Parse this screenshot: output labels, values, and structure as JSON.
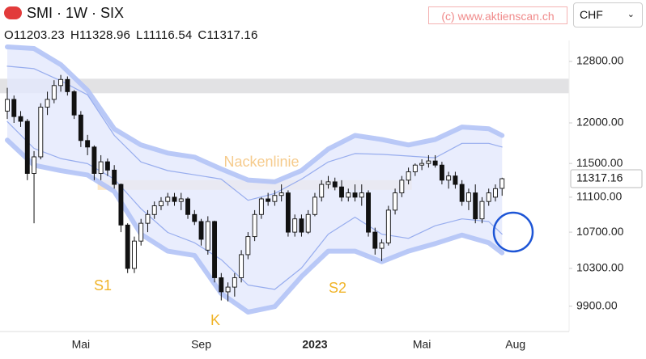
{
  "header": {
    "symbol": "SMI · 1W · SIX",
    "ohlc_labels": [
      "O",
      "H",
      "L",
      "C"
    ],
    "watermark": "(c) www.aktienscan.ch",
    "currency": "CHF"
  },
  "chart_data": {
    "type": "candlestick",
    "categories": [
      null,
      null,
      null,
      null,
      null,
      null,
      null,
      null,
      null,
      null,
      null,
      "Mai",
      null,
      null,
      null,
      null,
      null,
      null,
      null,
      null,
      null,
      null,
      null,
      null,
      null,
      null,
      null,
      null,
      null,
      "Sep",
      null,
      null,
      null,
      null,
      null,
      null,
      null,
      null,
      null,
      null,
      null,
      null,
      null,
      null,
      null,
      null,
      "2023",
      null,
      null,
      null,
      null,
      null,
      null,
      null,
      null,
      null,
      null,
      null,
      null,
      null,
      null,
      null,
      "Mai",
      null,
      null,
      null,
      null,
      null,
      null,
      null,
      null,
      null,
      null,
      null,
      null,
      null,
      "Aug"
    ],
    "open": [
      12150,
      12300,
      12080,
      12020,
      11380,
      11580,
      12200,
      12300,
      12480,
      12560,
      12400,
      12100,
      11780,
      11700,
      11380,
      11520,
      11420,
      11250,
      10780,
      10300,
      10600,
      10800,
      10900,
      11000,
      11050,
      11100,
      11050,
      11080,
      10900,
      10820,
      10500,
      10820,
      10200,
      10050,
      10100,
      10200,
      10450,
      10650,
      10900,
      11080,
      11050,
      11120,
      11150,
      10700,
      10850,
      10700,
      10900,
      11100,
      11250,
      11280,
      11220,
      11100,
      11150,
      11100,
      11150,
      10700,
      10520,
      10580,
      10950,
      11150,
      11300,
      11400,
      11480,
      11500,
      11530,
      11480,
      11300,
      11350,
      11250,
      11050,
      11150,
      10850,
      11050,
      11100,
      11203.23,
      null,
      null
    ],
    "high": [
      12450,
      12350,
      12150,
      12050,
      11650,
      12250,
      12400,
      12550,
      12620,
      12600,
      12420,
      12150,
      11850,
      11720,
      11600,
      11560,
      11480,
      11260,
      10800,
      10650,
      10850,
      10950,
      11050,
      11100,
      11150,
      11150,
      11150,
      11100,
      10950,
      10850,
      10880,
      10830,
      10250,
      10150,
      10250,
      10500,
      10700,
      10950,
      11100,
      11150,
      11180,
      11250,
      11180,
      10900,
      10900,
      10950,
      11150,
      11300,
      11350,
      11330,
      11300,
      11200,
      11250,
      11250,
      11180,
      10750,
      10620,
      11000,
      11200,
      11350,
      11450,
      11500,
      11550,
      11600,
      11600,
      11520,
      11400,
      11400,
      11300,
      11200,
      11250,
      11100,
      11200,
      11250,
      11328.96,
      null,
      null
    ],
    "low": [
      12050,
      12000,
      11950,
      11300,
      10800,
      11550,
      12100,
      12250,
      12400,
      12350,
      12050,
      11700,
      11600,
      11300,
      11300,
      11350,
      11200,
      10700,
      10250,
      10250,
      10550,
      10700,
      10850,
      10950,
      11000,
      11000,
      10950,
      10850,
      10780,
      10550,
      10450,
      10150,
      9960,
      9950,
      10000,
      10150,
      10400,
      10600,
      10850,
      11000,
      11000,
      11050,
      10650,
      10650,
      10650,
      10680,
      10880,
      11050,
      11200,
      11180,
      11050,
      11050,
      11050,
      11000,
      10650,
      10450,
      10380,
      10550,
      10900,
      11100,
      11250,
      11350,
      11420,
      11450,
      11450,
      11250,
      11200,
      11200,
      11000,
      10950,
      10800,
      10800,
      11000,
      11050,
      11116.54,
      null,
      null
    ],
    "close": [
      12300,
      12080,
      12020,
      11380,
      11580,
      12200,
      12300,
      12480,
      12560,
      12400,
      12100,
      11780,
      11700,
      11380,
      11520,
      11420,
      11250,
      10780,
      10300,
      10600,
      10800,
      10900,
      11000,
      11050,
      11100,
      11050,
      11080,
      10900,
      10820,
      10620,
      10820,
      10200,
      10050,
      10100,
      10200,
      10450,
      10650,
      10900,
      11080,
      11050,
      11120,
      11150,
      10700,
      10850,
      10700,
      10900,
      11100,
      11250,
      11280,
      11220,
      11100,
      11150,
      11100,
      11150,
      10700,
      10520,
      10580,
      10950,
      11150,
      11300,
      11400,
      11480,
      11500,
      11530,
      11480,
      11300,
      11350,
      11250,
      11050,
      11150,
      10850,
      11050,
      11150,
      11200,
      11317.16,
      null,
      null
    ],
    "up_color": "#ffffff",
    "down_color": "#111111",
    "ylim": [
      9640,
      13030
    ],
    "log_scale": true,
    "yticks": [
      {
        "value": 12800,
        "label": "12800.00"
      },
      {
        "value": 12000,
        "label": "12000.00"
      },
      {
        "value": 11500,
        "label": "11500.00"
      },
      {
        "value": 11100,
        "label": "11100.00"
      },
      {
        "value": 10700,
        "label": "10700.00"
      },
      {
        "value": 10300,
        "label": "10300.00"
      },
      {
        "value": 9900,
        "label": "9900.00"
      }
    ],
    "overlays": {
      "x": [
        0,
        4,
        8,
        12,
        16,
        20,
        24,
        28,
        32,
        36,
        40,
        44,
        48,
        52,
        56,
        60,
        64,
        68,
        72,
        74
      ],
      "fill": "#e4e8fc",
      "lines": [
        {
          "color": "#b3c3f6",
          "width": 6,
          "values": [
            12997,
            12975,
            12757,
            12418,
            11924,
            11725,
            11626,
            11577,
            11433,
            11302,
            11280,
            11414,
            11676,
            11843,
            11793,
            11725,
            11793,
            11948,
            11927,
            11843
          ]
        },
        {
          "color": "#b3c3f6",
          "width": 6,
          "values": [
            11785,
            11479,
            11413,
            11362,
            11167,
            10677,
            10489,
            10442,
            10032,
            9838,
            9895,
            10212,
            10489,
            10489,
            10373,
            10489,
            10572,
            10667,
            10582,
            10470
          ]
        },
        {
          "color": "#8ea5ec",
          "width": 1.2,
          "values": [
            12736,
            12703,
            12543,
            12359,
            11843,
            11518,
            11414,
            11364,
            11313,
            11064,
            11143,
            11313,
            11518,
            11620,
            11610,
            11590,
            11569,
            11745,
            11745,
            11700
          ]
        },
        {
          "color": "#8ea5ec",
          "width": 1.2,
          "values": [
            12017,
            11684,
            11559,
            11498,
            11313,
            10966,
            10696,
            10582,
            10396,
            10122,
            10076,
            10304,
            10677,
            10869,
            10677,
            10630,
            10772,
            10850,
            10820,
            10677
          ]
        }
      ]
    },
    "zones": [
      {
        "from": 12380,
        "to": 12570,
        "color": "#e2e2e4"
      },
      {
        "from": 11185,
        "to": 11300,
        "color": "#fde8c8",
        "start": 14,
        "end": 60
      }
    ],
    "annotations": [
      "Nackenlinie",
      "S1",
      "S2",
      "K"
    ]
  }
}
